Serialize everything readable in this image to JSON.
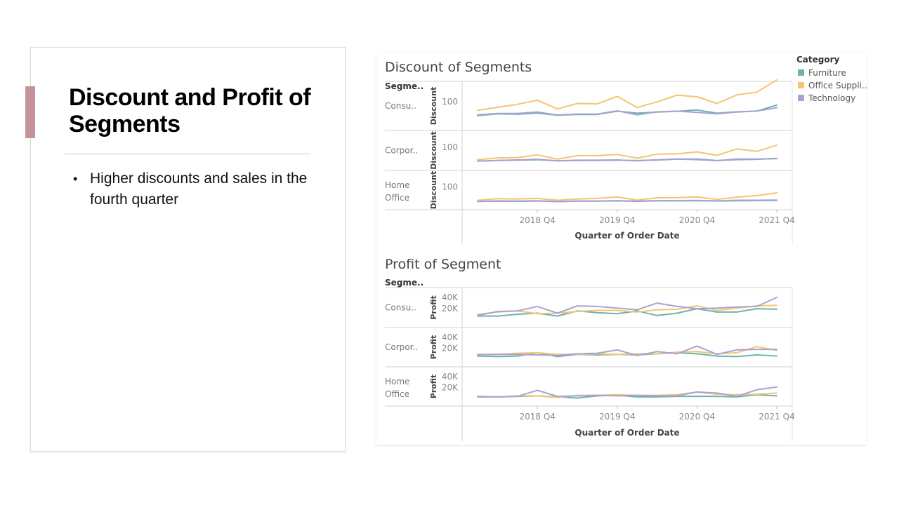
{
  "slide": {
    "title": "Discount and Profit of Segments",
    "bullets": [
      "Higher discounts and sales in the fourth quarter"
    ],
    "bullet_glyph": "•",
    "accent_color": "#c4949b"
  },
  "legend": {
    "title": "Category",
    "items": [
      {
        "label": "Furniture",
        "color": "#6db3ad"
      },
      {
        "label": "Office Suppli..",
        "color": "#f5c56e"
      },
      {
        "label": "Technology",
        "color": "#a8a3d6"
      }
    ]
  },
  "chart_data": [
    {
      "type": "line",
      "title": "Discount of Segments",
      "row_header": "Segme..",
      "ylabel": "Discount",
      "xlabel": "Quarter of Order Date",
      "x_ticks": [
        {
          "label": "2018 Q4",
          "index": 3
        },
        {
          "label": "2019 Q4",
          "index": 7
        },
        {
          "label": "2020 Q4",
          "index": 11
        },
        {
          "label": "2021 Q4",
          "index": 15
        }
      ],
      "x": [
        "2018 Q1",
        "2018 Q2",
        "2018 Q3",
        "2018 Q4",
        "2019 Q1",
        "2019 Q2",
        "2019 Q3",
        "2019 Q4",
        "2020 Q1",
        "2020 Q2",
        "2020 Q3",
        "2020 Q4",
        "2021 Q1",
        "2021 Q2",
        "2021 Q3",
        "2021 Q4"
      ],
      "ylim": [
        -20,
        180
      ],
      "y_tick": "100",
      "y_tick_value": 100,
      "panels": [
        {
          "segment": "Consu..",
          "series": [
            {
              "name": "Furniture",
              "values": [
                32,
                41,
                39,
                45,
                34,
                38,
                38,
                54,
                44,
                50,
                53,
                60,
                44,
                51,
                54,
                84
              ]
            },
            {
              "name": "Office Suppli..",
              "values": [
                58,
                73,
                88,
                108,
                65,
                92,
                90,
                127,
                72,
                100,
                133,
                125,
                92,
                134,
                148,
                208
              ]
            },
            {
              "name": "Technology",
              "values": [
                36,
                43,
                43,
                50,
                35,
                40,
                40,
                56,
                36,
                51,
                54,
                48,
                41,
                50,
                55,
                71
              ]
            }
          ]
        },
        {
          "segment": "Corpor..",
          "series": [
            {
              "name": "Furniture",
              "values": [
                12,
                16,
                18,
                21,
                14,
                16,
                17,
                18,
                16,
                19,
                25,
                26,
                16,
                22,
                24,
                30
              ]
            },
            {
              "name": "Office Suppli..",
              "values": [
                22,
                32,
                35,
                52,
                25,
                47,
                47,
                54,
                31,
                57,
                58,
                71,
                49,
                90,
                74,
                113
              ]
            },
            {
              "name": "Technology",
              "values": [
                13,
                17,
                20,
                24,
                14,
                18,
                18,
                20,
                14,
                21,
                26,
                22,
                15,
                26,
                26,
                28
              ]
            }
          ]
        },
        {
          "segment": "Home Office",
          "series": [
            {
              "name": "Furniture",
              "values": [
                6,
                8,
                7,
                9,
                5,
                8,
                8,
                10,
                7,
                11,
                10,
                11,
                9,
                11,
                12,
                13
              ]
            },
            {
              "name": "Office Suppli..",
              "values": [
                14,
                24,
                22,
                26,
                14,
                22,
                27,
                35,
                15,
                30,
                31,
                35,
                20,
                34,
                44,
                62
              ]
            },
            {
              "name": "Technology",
              "values": [
                7,
                10,
                9,
                11,
                6,
                9,
                9,
                12,
                8,
                12,
                12,
                13,
                10,
                14,
                14,
                15
              ]
            }
          ]
        }
      ]
    },
    {
      "type": "line",
      "title": "Profit of Segment",
      "row_header": "Segme..",
      "ylabel": "Profit",
      "xlabel": "Quarter of Order Date",
      "x_ticks": [
        {
          "label": "2018 Q4",
          "index": 3
        },
        {
          "label": "2019 Q4",
          "index": 7
        },
        {
          "label": "2020 Q4",
          "index": 11
        },
        {
          "label": "2021 Q4",
          "index": 15
        }
      ],
      "x": [
        "2018 Q1",
        "2018 Q2",
        "2018 Q3",
        "2018 Q4",
        "2019 Q1",
        "2019 Q2",
        "2019 Q3",
        "2019 Q4",
        "2020 Q1",
        "2020 Q2",
        "2020 Q3",
        "2020 Q4",
        "2021 Q1",
        "2021 Q2",
        "2021 Q3",
        "2021 Q4"
      ],
      "ylim": [
        -6000,
        50000
      ],
      "y_ticks": [
        {
          "label": "40K",
          "value": 40000
        },
        {
          "label": "20K",
          "value": 20000
        }
      ],
      "panels": [
        {
          "segment": "Consu..",
          "series": [
            {
              "name": "Furniture",
              "values": [
                7000,
                7000,
                10000,
                12000,
                7000,
                16000,
                13000,
                11000,
                16000,
                8000,
                12000,
                20000,
                14000,
                14000,
                20000,
                19000
              ]
            },
            {
              "name": "Office Suppli..",
              "values": [
                10000,
                14000,
                16000,
                11000,
                12000,
                15000,
                17000,
                17000,
                14000,
                18000,
                19000,
                25000,
                17000,
                21000,
                25000,
                26000
              ]
            },
            {
              "name": "Technology",
              "values": [
                8000,
                15000,
                16000,
                24000,
                12000,
                25000,
                24000,
                21000,
                18000,
                30000,
                24000,
                20000,
                21000,
                23000,
                24000,
                40000
              ]
            }
          ]
        },
        {
          "segment": "Corpor..",
          "series": [
            {
              "name": "Furniture",
              "values": [
                6000,
                5000,
                6000,
                12000,
                5000,
                9000,
                8000,
                9000,
                8000,
                10000,
                12000,
                10000,
                6000,
                5000,
                8000,
                6000
              ]
            },
            {
              "name": "Office Suppli..",
              "values": [
                8000,
                9000,
                11000,
                12000,
                9000,
                9000,
                10000,
                9000,
                10000,
                10000,
                13000,
                14000,
                10000,
                12000,
                23000,
                16000
              ]
            },
            {
              "name": "Technology",
              "values": [
                9000,
                9000,
                9000,
                8000,
                7000,
                10000,
                11000,
                17000,
                7000,
                14000,
                10000,
                24000,
                9000,
                17000,
                18000,
                18000
              ]
            }
          ]
        },
        {
          "segment": "Home Office",
          "series": [
            {
              "name": "Furniture",
              "values": [
                4000,
                3000,
                4000,
                5000,
                3000,
                1000,
                5000,
                6000,
                3000,
                3000,
                4000,
                4000,
                4000,
                3000,
                7000,
                5000
              ]
            },
            {
              "name": "Office Suppli..",
              "values": [
                3000,
                3000,
                5000,
                5000,
                2000,
                6000,
                6000,
                7000,
                6000,
                6000,
                7000,
                12000,
                8000,
                7000,
                8000,
                10000
              ]
            },
            {
              "name": "Technology",
              "values": [
                3000,
                3000,
                4000,
                15000,
                4000,
                5000,
                6000,
                5000,
                6000,
                5000,
                5000,
                12000,
                10000,
                4000,
                16000,
                21000
              ]
            }
          ]
        }
      ]
    }
  ]
}
